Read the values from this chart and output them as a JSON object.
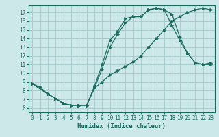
{
  "title": "",
  "xlabel": "Humidex (Indice chaleur)",
  "bg_color": "#cce8e8",
  "grid_color": "#aacccc",
  "line_color": "#1a6b5e",
  "xlim": [
    -0.5,
    23.5
  ],
  "ylim": [
    5.5,
    17.8
  ],
  "xticks": [
    0,
    1,
    2,
    3,
    4,
    5,
    6,
    7,
    8,
    9,
    10,
    11,
    12,
    13,
    14,
    15,
    16,
    17,
    18,
    19,
    20,
    21,
    22,
    23
  ],
  "yticks": [
    6,
    7,
    8,
    9,
    10,
    11,
    12,
    13,
    14,
    15,
    16,
    17
  ],
  "line1_x": [
    0,
    1,
    2,
    3,
    4,
    5,
    6,
    7,
    8,
    9,
    10,
    11,
    12,
    13,
    14,
    15,
    16,
    17,
    18,
    19,
    20,
    21,
    22,
    23
  ],
  "line1_y": [
    8.8,
    8.4,
    7.6,
    7.1,
    6.5,
    6.3,
    6.3,
    6.3,
    8.5,
    11.0,
    13.8,
    14.8,
    16.3,
    16.5,
    16.5,
    17.3,
    17.5,
    17.3,
    16.8,
    14.2,
    12.3,
    11.2,
    11.0,
    11.2
  ],
  "line2_x": [
    0,
    2,
    3,
    4,
    5,
    6,
    7,
    8,
    9,
    10,
    11,
    12,
    13,
    14,
    15,
    16,
    17,
    18,
    19,
    20,
    21,
    22,
    23
  ],
  "line2_y": [
    8.8,
    7.6,
    7.1,
    6.5,
    6.3,
    6.3,
    6.3,
    8.3,
    10.5,
    13.0,
    14.5,
    15.8,
    16.5,
    16.5,
    17.3,
    17.5,
    17.3,
    15.5,
    13.8,
    12.3,
    11.2,
    11.0,
    11.0
  ],
  "line3_x": [
    0,
    2,
    3,
    4,
    5,
    6,
    7,
    8,
    9,
    10,
    11,
    12,
    13,
    14,
    15,
    16,
    17,
    18,
    19,
    20,
    21,
    22,
    23
  ],
  "line3_y": [
    8.8,
    7.6,
    7.1,
    6.5,
    6.3,
    6.3,
    6.3,
    8.3,
    9.0,
    9.8,
    10.3,
    10.8,
    11.3,
    12.0,
    13.0,
    14.0,
    15.0,
    16.0,
    16.5,
    17.0,
    17.3,
    17.5,
    17.3
  ]
}
